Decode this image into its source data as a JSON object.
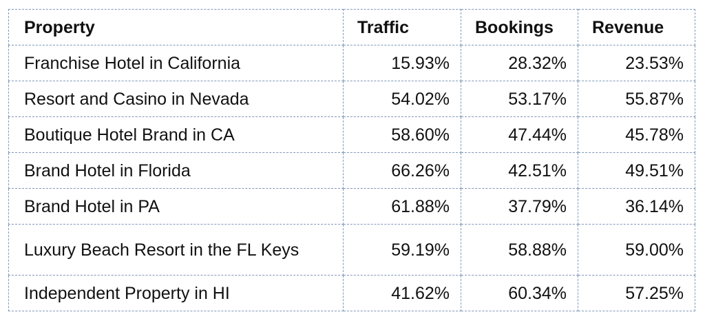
{
  "table": {
    "headers": [
      "Property",
      "Traffic",
      "Bookings",
      "Revenue"
    ],
    "rows": [
      [
        "Franchise Hotel in California",
        "15.93%",
        "28.32%",
        "23.53%"
      ],
      [
        "Resort and Casino in Nevada",
        "54.02%",
        "53.17%",
        "55.87%"
      ],
      [
        "Boutique Hotel Brand in CA",
        "58.60%",
        "47.44%",
        "45.78%"
      ],
      [
        "Brand Hotel in Florida",
        "66.26%",
        "42.51%",
        "49.51%"
      ],
      [
        "Brand Hotel in PA",
        "61.88%",
        "37.79%",
        "36.14%"
      ],
      [
        "Luxury Beach Resort in the FL Keys",
        "59.19%",
        "58.88%",
        "59.00%"
      ],
      [
        "Independent Property in HI",
        "41.62%",
        "60.34%",
        "57.25%"
      ]
    ]
  }
}
